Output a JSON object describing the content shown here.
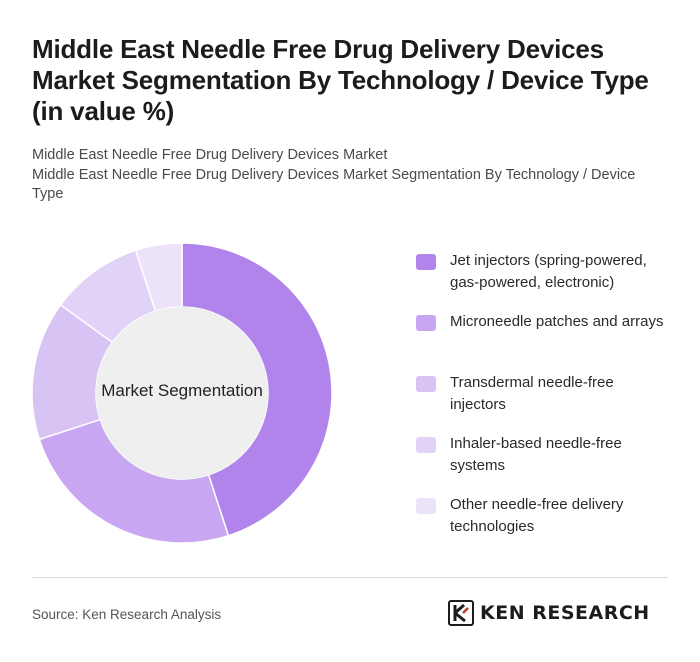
{
  "title": "Middle East Needle Free Drug Delivery Devices Market Segmentation By Technology / Device Type (in value %)",
  "subtitle_line1": "Middle East Needle Free Drug Delivery Devices Market",
  "subtitle_line2": "Middle East Needle Free Drug Delivery Devices Market Segmentation By Technology / Device Type",
  "center_label": "Market Segmentation",
  "source": "Source: Ken Research Analysis",
  "logo_text": "KEN RESEARCH",
  "colors": {
    "segments": [
      "#b184ec",
      "#c8a6f1",
      "#d8c3f5",
      "#e1d2f7",
      "#ece2fa"
    ],
    "hole": "#efefef",
    "divider": "#d9d9d9"
  },
  "chart_data": {
    "type": "pie",
    "donut": true,
    "categories": [
      "Jet injectors (spring-powered, gas-powered, electronic)",
      "Microneedle patches and arrays",
      "Transdermal needle-free injectors",
      "Inhaler-based needle-free systems",
      "Other needle-free delivery technologies"
    ],
    "values": [
      45,
      25,
      15,
      10,
      5
    ],
    "legend_position": "right"
  }
}
